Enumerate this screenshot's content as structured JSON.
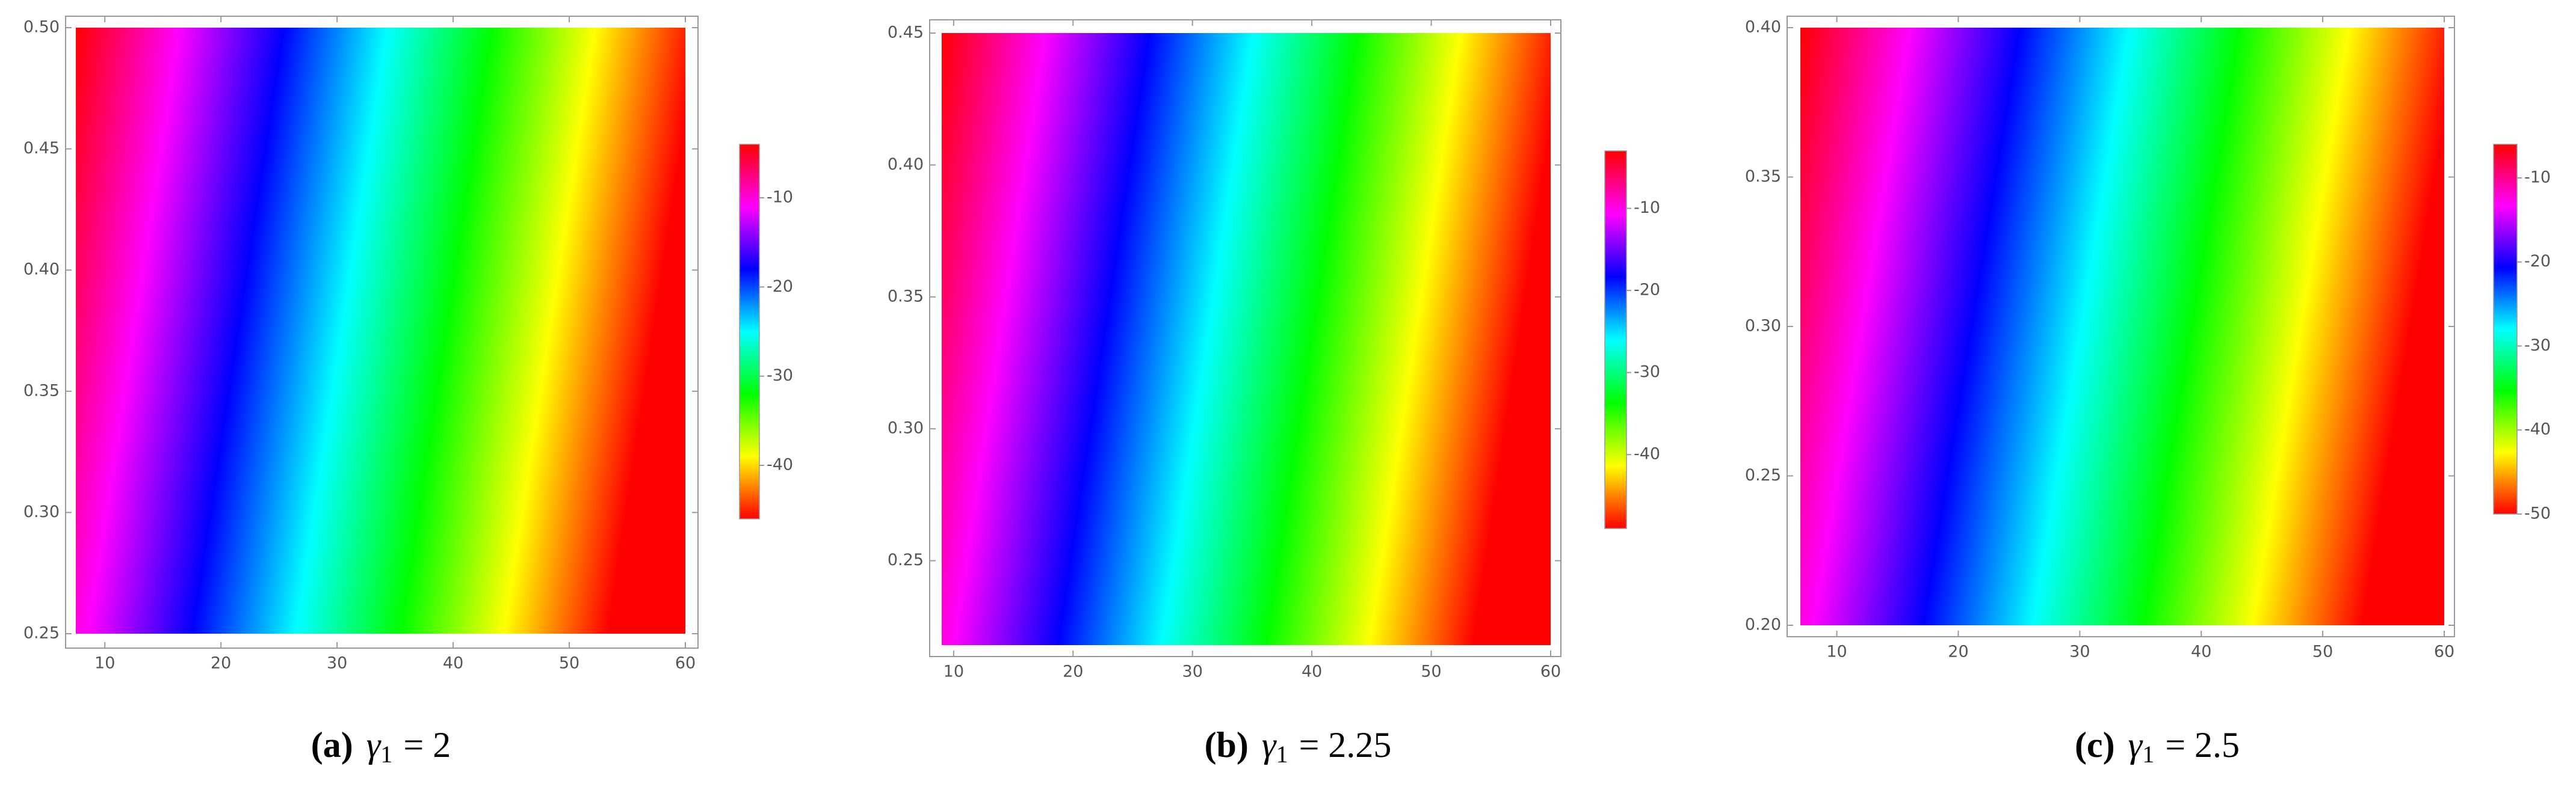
{
  "chart_data": [
    {
      "type": "density",
      "xlim": [
        7.5,
        60
      ],
      "ylim": [
        0.25,
        0.5
      ],
      "xticks": [
        10,
        20,
        30,
        40,
        50,
        60
      ],
      "yticks": [
        0.25,
        {
          "value": 0.3,
          "label": "0.30"
        },
        0.35,
        {
          "value": 0.4,
          "label": "0.40"
        },
        0.45,
        {
          "value": 0.5,
          "label": "0.50"
        }
      ],
      "zlim": [
        -46,
        -4
      ],
      "zticks": [
        -10,
        -20,
        -30,
        -40
      ],
      "caption_label": "(a)",
      "caption_symbol": "γ",
      "caption_subscript": "1",
      "caption_value": "= 2"
    },
    {
      "type": "density",
      "xlim": [
        9,
        60
      ],
      "ylim": [
        0.218,
        0.45
      ],
      "xticks": [
        10,
        20,
        30,
        40,
        50,
        60
      ],
      "yticks": [
        0.25,
        {
          "value": 0.3,
          "label": "0.30"
        },
        0.35,
        {
          "value": 0.4,
          "label": "0.40"
        },
        0.45
      ],
      "zlim": [
        -49,
        -3
      ],
      "zticks": [
        -10,
        -20,
        -30,
        -40
      ],
      "caption_label": "(b)",
      "caption_symbol": "γ",
      "caption_subscript": "1",
      "caption_value": "= 2.25"
    },
    {
      "type": "density",
      "xlim": [
        7,
        60
      ],
      "ylim": [
        0.2,
        0.4
      ],
      "xticks": [
        10,
        20,
        30,
        40,
        50,
        60
      ],
      "yticks": [
        {
          "value": 0.2,
          "label": "0.20"
        },
        0.25,
        {
          "value": 0.3,
          "label": "0.30"
        },
        0.35,
        {
          "value": 0.4,
          "label": "0.40"
        }
      ],
      "zlim": [
        -50,
        -6
      ],
      "zticks": [
        -10,
        -20,
        -30,
        -40,
        -50
      ],
      "caption_label": "(c)",
      "caption_symbol": "γ",
      "caption_subscript": "1",
      "caption_value": "= 2.5"
    }
  ]
}
